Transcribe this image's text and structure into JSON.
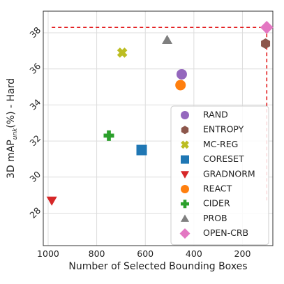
{
  "chart_data": {
    "type": "scatter",
    "xlabel": "Number of Selected Bounding Boxes",
    "ylabel": "3D mAP",
    "ylabel_sub": "unk",
    "ylabel_suffix": "(%) - Hard",
    "x_reversed": true,
    "xlim": [
      1020,
      75
    ],
    "ylim": [
      26.2,
      39.2
    ],
    "xticks": [
      1000,
      800,
      600,
      400,
      200
    ],
    "yticks": [
      28,
      30,
      32,
      34,
      36,
      38
    ],
    "grid": true,
    "legend_position": "lower-right",
    "series": [
      {
        "name": "RAND",
        "marker": "circle",
        "color": "#9467bd",
        "x": 450,
        "y": 35.7
      },
      {
        "name": "ENTROPY",
        "marker": "hexagon",
        "color": "#8c564b",
        "x": 105,
        "y": 37.4
      },
      {
        "name": "MC-REG",
        "marker": "x",
        "color": "#bcbd22",
        "x": 695,
        "y": 36.9
      },
      {
        "name": "CORESET",
        "marker": "square",
        "color": "#1f77b4",
        "x": 615,
        "y": 31.5
      },
      {
        "name": "GRADNORM",
        "marker": "triangle-down",
        "color": "#d62728",
        "x": 985,
        "y": 28.7
      },
      {
        "name": "REACT",
        "marker": "circle",
        "color": "#ff7f0e",
        "x": 455,
        "y": 35.1
      },
      {
        "name": "CIDER",
        "marker": "plus",
        "color": "#2ca02c",
        "x": 750,
        "y": 32.3
      },
      {
        "name": "PROB",
        "marker": "triangle-up",
        "color": "#7f7f7f",
        "x": 510,
        "y": 37.6
      },
      {
        "name": "OPEN-CRB",
        "marker": "diamond",
        "color": "#e377c2",
        "x": 100,
        "y": 38.3
      }
    ],
    "reference_lines": {
      "color": "#e31a1c",
      "horizontal": {
        "y": 38.3,
        "x_from": 985,
        "x_to": 100
      },
      "vertical": {
        "x": 100,
        "y_from": 38.3,
        "y_to": 28.6
      }
    }
  }
}
